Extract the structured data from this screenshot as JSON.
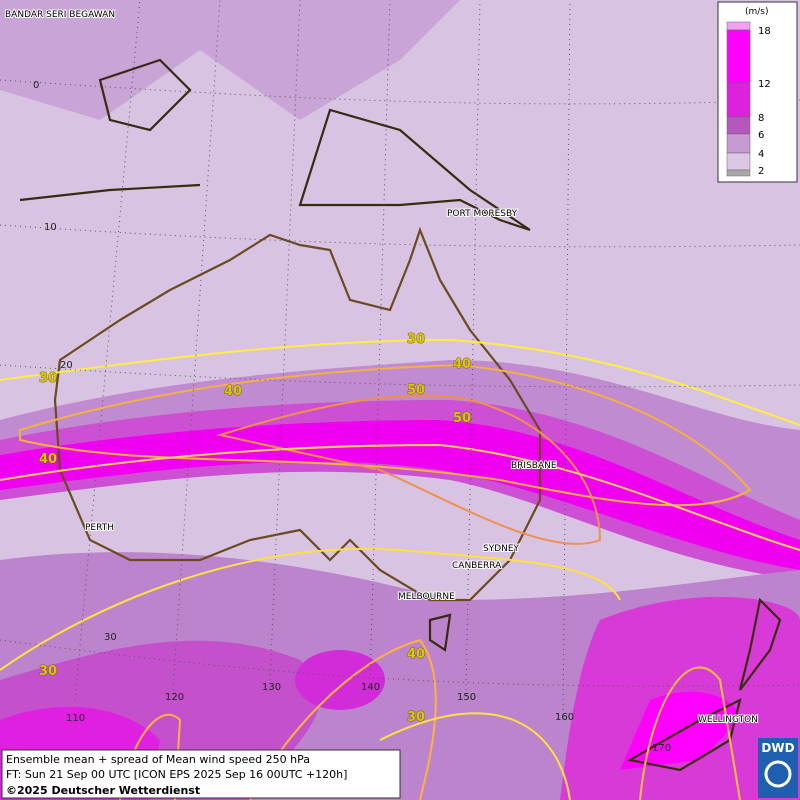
{
  "map": {
    "cities": [
      "BANDAR SERI BEGAWAN",
      "PORT MORESBY",
      "BRISBANE",
      "PERTH",
      "SYDNEY",
      "CANBERRA",
      "MELBOURNE",
      "WELLINGTON"
    ],
    "lat_labels": [
      "0",
      "10",
      "20",
      "30"
    ],
    "lon_labels": [
      "110",
      "120",
      "130",
      "140",
      "150",
      "160",
      "170"
    ],
    "contour_labels": [
      "30",
      "30",
      "30",
      "30",
      "40",
      "40",
      "40",
      "40",
      "50",
      "50"
    ],
    "legend": {
      "unit": "(m/s)",
      "ticks": [
        "18",
        "12",
        "8",
        "6",
        "4",
        "2"
      ],
      "colors": [
        "#f5a0f5",
        "#ff00ff",
        "#dd22dd",
        "#b558bd",
        "#c69ad2",
        "#dcc8e4",
        "#a8a8a8"
      ]
    },
    "footer": {
      "line1": "Ensemble mean + spread of Mean wind speed 250 hPa",
      "line2": "FT: Sun 21 Sep 00 UTC [ICON EPS 2025 Sep 16 00UTC +120h]",
      "line3": "©2025 Deutscher Wetterdienst"
    },
    "logo": "DWD"
  }
}
